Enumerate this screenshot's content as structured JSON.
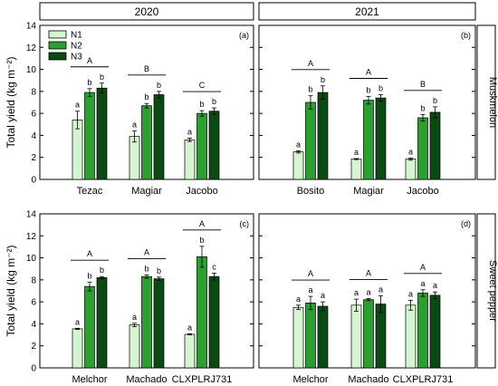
{
  "colors": {
    "N1": "#d4f5cf",
    "N2": "#2e9d32",
    "N3": "#0b4a12",
    "stroke": "#000000"
  },
  "figure": {
    "col_headers": [
      "2020",
      "2021"
    ],
    "row_labels": [
      "Muskmelon",
      "Sweet pepper"
    ],
    "ylabel": "Total yield (kg m⁻²)",
    "legend": [
      "N1",
      "N2",
      "N3"
    ]
  },
  "chart_data": [
    {
      "type": "bar",
      "panel": "(a)",
      "year": "2020",
      "crop": "Muskmelon",
      "categories": [
        "Tezac",
        "Magiar",
        "Jacobo"
      ],
      "series": [
        {
          "name": "N1",
          "values": [
            5.4,
            3.9,
            3.6
          ],
          "errors": [
            0.8,
            0.5,
            0.15
          ],
          "letters": [
            "a",
            "a",
            "a"
          ]
        },
        {
          "name": "N2",
          "values": [
            7.9,
            6.7,
            6.0
          ],
          "errors": [
            0.35,
            0.2,
            0.25
          ],
          "letters": [
            "b",
            "b",
            "b"
          ]
        },
        {
          "name": "N3",
          "values": [
            8.3,
            7.7,
            6.2
          ],
          "errors": [
            0.45,
            0.3,
            0.3
          ],
          "letters": [
            "b",
            "b",
            "b"
          ]
        }
      ],
      "group_letters": [
        "A",
        "B",
        "C"
      ],
      "ylim": [
        0,
        14
      ],
      "yticks": [
        0,
        2,
        4,
        6,
        8,
        10,
        12,
        14
      ]
    },
    {
      "type": "bar",
      "panel": "(b)",
      "year": "2021",
      "crop": "Muskmelon",
      "categories": [
        "Bosito",
        "Magiar",
        "Jacobo"
      ],
      "series": [
        {
          "name": "N1",
          "values": [
            2.5,
            1.85,
            1.85
          ],
          "errors": [
            0.1,
            0.05,
            0.1
          ],
          "letters": [
            "a",
            "a",
            "a"
          ]
        },
        {
          "name": "N2",
          "values": [
            7.0,
            7.2,
            5.6
          ],
          "errors": [
            0.6,
            0.35,
            0.3
          ],
          "letters": [
            "b",
            "b",
            "b"
          ]
        },
        {
          "name": "N3",
          "values": [
            7.9,
            7.4,
            6.1
          ],
          "errors": [
            0.6,
            0.3,
            0.5
          ],
          "letters": [
            "b",
            "b",
            "b"
          ]
        }
      ],
      "group_letters": [
        "A",
        "A",
        "B"
      ],
      "ylim": [
        0,
        14
      ],
      "yticks": [
        0,
        2,
        4,
        6,
        8,
        10,
        12,
        14
      ]
    },
    {
      "type": "bar",
      "panel": "(c)",
      "year": "2020",
      "crop": "Sweet pepper",
      "categories": [
        "Melchor",
        "Machado",
        "CLXPLRJ731"
      ],
      "series": [
        {
          "name": "N1",
          "values": [
            3.55,
            3.9,
            3.05
          ],
          "errors": [
            0.05,
            0.15,
            0.05
          ],
          "letters": [
            "a",
            "a",
            "a"
          ]
        },
        {
          "name": "N2",
          "values": [
            7.4,
            8.3,
            10.1
          ],
          "errors": [
            0.4,
            0.15,
            0.95
          ],
          "letters": [
            "b",
            "b",
            "b"
          ]
        },
        {
          "name": "N3",
          "values": [
            8.2,
            8.1,
            8.3
          ],
          "errors": [
            0.1,
            0.15,
            0.3
          ],
          "letters": [
            "b",
            "b",
            "c"
          ]
        }
      ],
      "group_letters": [
        "A",
        "A",
        "A"
      ],
      "ylim": [
        0,
        14
      ],
      "yticks": [
        0,
        2,
        4,
        6,
        8,
        10,
        12,
        14
      ]
    },
    {
      "type": "bar",
      "panel": "(d)",
      "year": "2021",
      "crop": "Sweet pepper",
      "categories": [
        "Melchor",
        "Machado",
        "CLXPLRJ731"
      ],
      "series": [
        {
          "name": "N1",
          "values": [
            5.5,
            5.7,
            5.7
          ],
          "errors": [
            0.2,
            0.55,
            0.45
          ],
          "letters": [
            "a",
            "a",
            "a"
          ]
        },
        {
          "name": "N2",
          "values": [
            5.9,
            6.2,
            6.8
          ],
          "errors": [
            0.6,
            0.1,
            0.3
          ],
          "letters": [
            "a",
            "a",
            "a"
          ]
        },
        {
          "name": "N3",
          "values": [
            5.6,
            5.8,
            6.6
          ],
          "errors": [
            0.4,
            0.75,
            0.3
          ],
          "letters": [
            "a",
            "a",
            "a"
          ]
        }
      ],
      "group_letters": [
        "A",
        "A",
        "A"
      ],
      "ylim": [
        0,
        14
      ],
      "yticks": [
        0,
        2,
        4,
        6,
        8,
        10,
        12,
        14
      ]
    }
  ]
}
